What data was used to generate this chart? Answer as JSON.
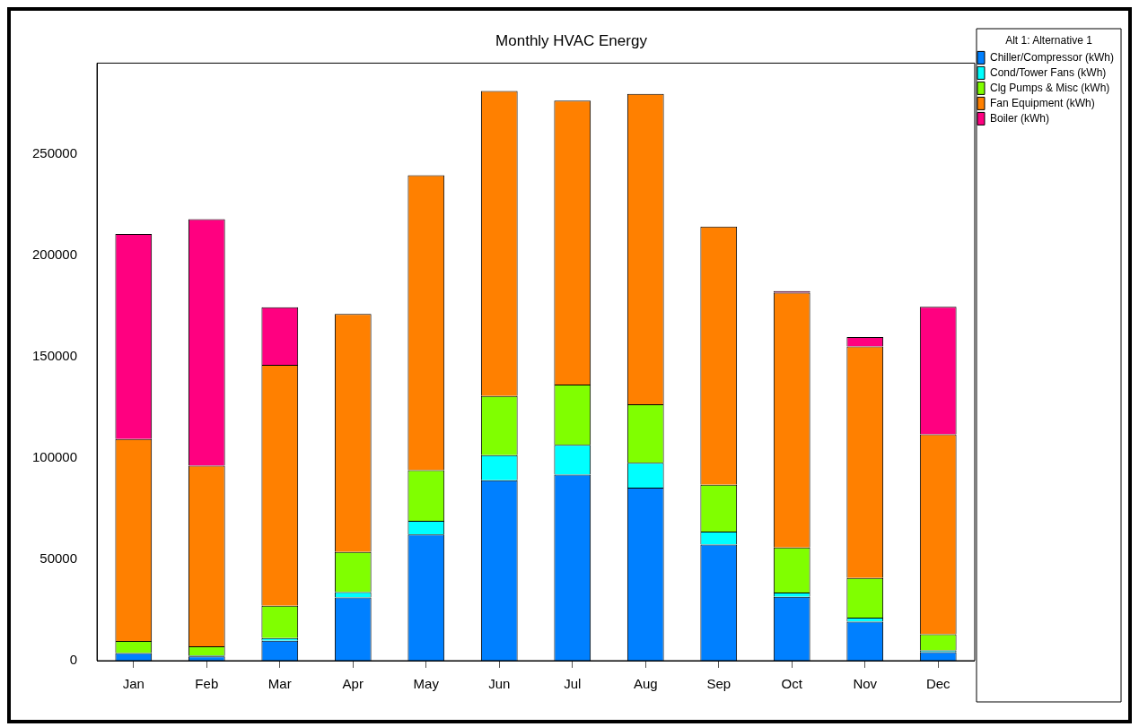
{
  "chart_data": {
    "type": "bar",
    "title": "Monthly HVAC Energy",
    "legend_title": "Alt 1: Alternative 1",
    "categories": [
      "Jan",
      "Feb",
      "Mar",
      "Apr",
      "May",
      "Jun",
      "Jul",
      "Aug",
      "Sep",
      "Oct",
      "Nov",
      "Dec"
    ],
    "stacked": true,
    "ylim": [
      0,
      295000
    ],
    "yticks": [
      0,
      50000,
      100000,
      150000,
      200000,
      250000
    ],
    "grid": false,
    "legend": "top right",
    "series": [
      {
        "name": "Chiller/Compressor (kWh)",
        "color": "#0080ff",
        "values": [
          3800,
          2100,
          9900,
          31200,
          62300,
          89100,
          91800,
          85400,
          57300,
          31500,
          19300,
          4200
        ]
      },
      {
        "name": "Cond/Tower Fans (kWh)",
        "color": "#00ffff",
        "values": [
          null,
          400,
          1300,
          2600,
          6700,
          12400,
          14700,
          12300,
          6400,
          2100,
          1900,
          900
        ]
      },
      {
        "name": "Clg Pumps & Misc (kWh)",
        "color": "#80ff00",
        "values": [
          5900,
          4600,
          15900,
          19900,
          25000,
          29200,
          29800,
          28900,
          23100,
          22300,
          19600,
          7900
        ]
      },
      {
        "name": "Fan Equipment (kWh)",
        "color": "#ff8000",
        "values": [
          99700,
          89200,
          118900,
          117400,
          145600,
          150500,
          140200,
          153200,
          127500,
          125800,
          114300,
          98700
        ]
      },
      {
        "name": "Boiler (kWh)",
        "color": "#ff0080",
        "values": [
          101200,
          121700,
          28500,
          0,
          0,
          0,
          0,
          0,
          0,
          700,
          4700,
          63000
        ]
      }
    ]
  }
}
